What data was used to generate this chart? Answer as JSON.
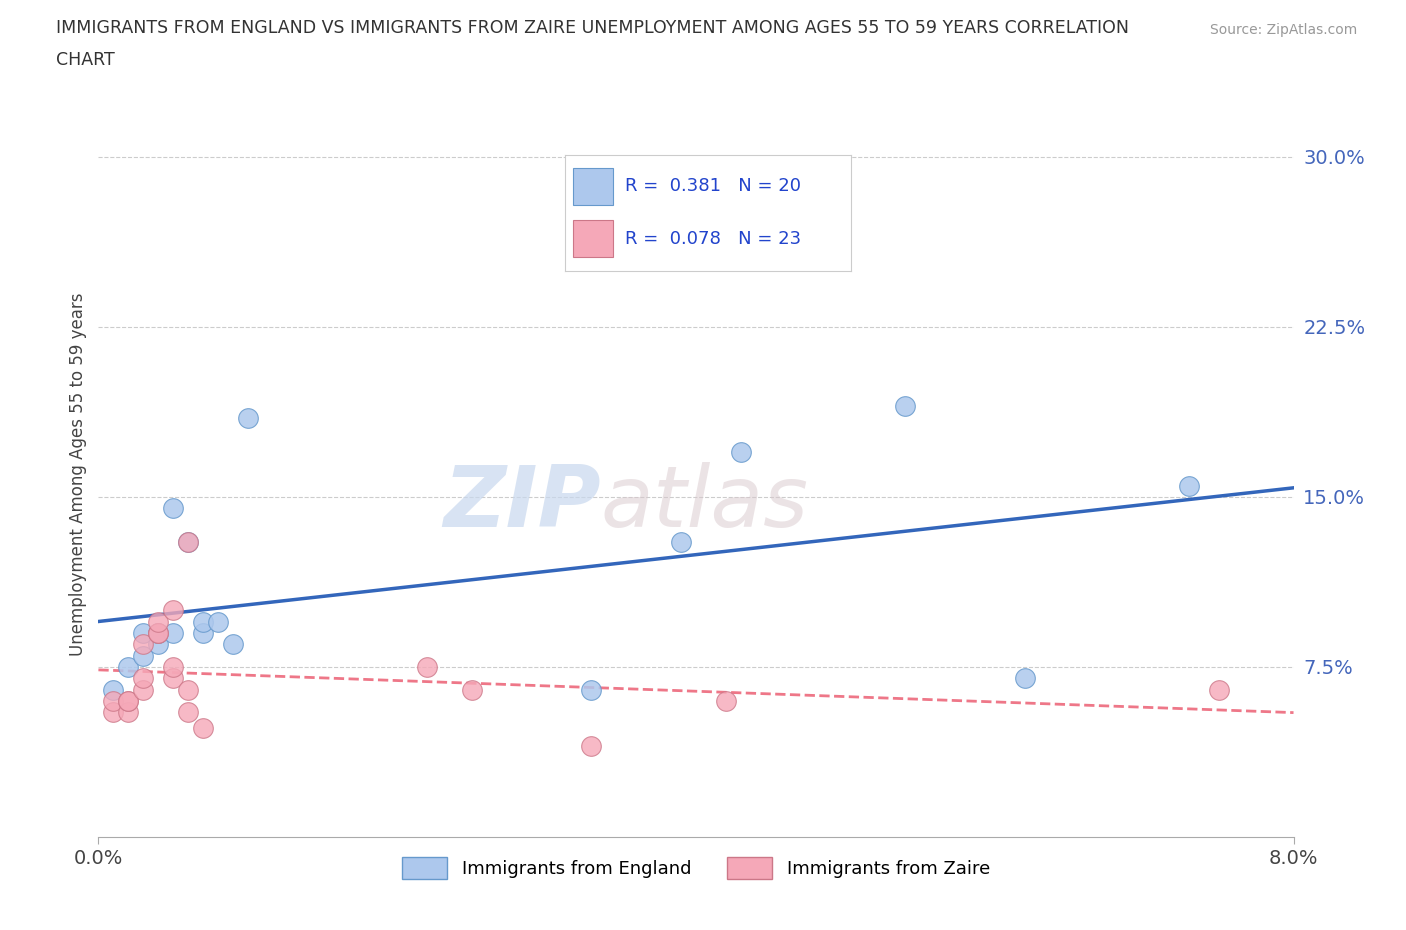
{
  "title_line1": "IMMIGRANTS FROM ENGLAND VS IMMIGRANTS FROM ZAIRE UNEMPLOYMENT AMONG AGES 55 TO 59 YEARS CORRELATION",
  "title_line2": "CHART",
  "source": "Source: ZipAtlas.com",
  "ylabel": "Unemployment Among Ages 55 to 59 years",
  "england_color": "#adc8ed",
  "england_edge_color": "#6699cc",
  "zaire_color": "#f5a8b8",
  "zaire_edge_color": "#cc7788",
  "england_line_color": "#3366bb",
  "zaire_line_color": "#ee7788",
  "england_R": 0.381,
  "england_N": 20,
  "zaire_R": 0.078,
  "zaire_N": 23,
  "background_color": "#ffffff",
  "watermark_zip": "ZIP",
  "watermark_atlas": "atlas",
  "england_x": [
    0.001,
    0.002,
    0.003,
    0.003,
    0.004,
    0.004,
    0.005,
    0.005,
    0.006,
    0.007,
    0.007,
    0.008,
    0.009,
    0.01,
    0.033,
    0.039,
    0.043,
    0.054,
    0.062,
    0.073
  ],
  "england_y": [
    0.065,
    0.075,
    0.08,
    0.09,
    0.085,
    0.09,
    0.09,
    0.145,
    0.13,
    0.09,
    0.095,
    0.095,
    0.085,
    0.185,
    0.065,
    0.13,
    0.17,
    0.19,
    0.07,
    0.155
  ],
  "zaire_x": [
    0.001,
    0.001,
    0.002,
    0.002,
    0.002,
    0.003,
    0.003,
    0.003,
    0.004,
    0.004,
    0.004,
    0.005,
    0.005,
    0.005,
    0.006,
    0.006,
    0.006,
    0.007,
    0.022,
    0.025,
    0.033,
    0.042,
    0.075
  ],
  "zaire_y": [
    0.055,
    0.06,
    0.055,
    0.06,
    0.06,
    0.065,
    0.07,
    0.085,
    0.09,
    0.09,
    0.095,
    0.1,
    0.07,
    0.075,
    0.13,
    0.065,
    0.055,
    0.048,
    0.075,
    0.065,
    0.04,
    0.06,
    0.065
  ],
  "xlim": [
    0.0,
    0.08
  ],
  "ylim": [
    0.0,
    0.32
  ],
  "yticks": [
    0.075,
    0.15,
    0.225,
    0.3
  ],
  "ytick_labels": [
    "7.5%",
    "15.0%",
    "22.5%",
    "30.0%"
  ],
  "xticks": [
    0.0,
    0.08
  ],
  "xtick_labels": [
    "0.0%",
    "8.0%"
  ],
  "grid_color": "#cccccc",
  "tick_color": "#4466bb"
}
